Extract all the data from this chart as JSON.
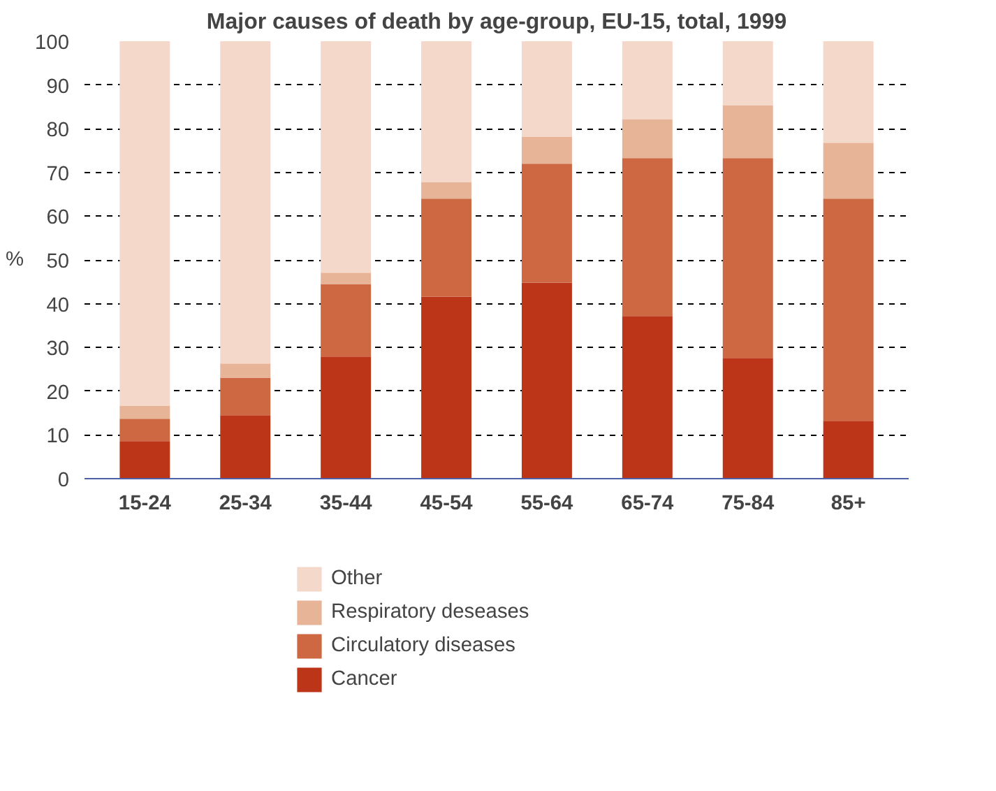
{
  "chart_data": {
    "type": "bar",
    "title": "Major causes of death by age-group, EU-15, total, 1999",
    "ylabel": "%",
    "categories": [
      "15-24",
      "25-34",
      "35-44",
      "45-54",
      "55-64",
      "65-74",
      "75-84",
      "85+"
    ],
    "stacked": true,
    "series": [
      {
        "name": "Cancer",
        "color": "#bc3518",
        "values": [
          8.6,
          14.5,
          27.9,
          41.6,
          44.8,
          37.2,
          27.6,
          13.2
        ]
      },
      {
        "name": "Circulatory diseases",
        "color": "#cd6842",
        "values": [
          5.1,
          8.6,
          16.6,
          22.4,
          27.2,
          36.1,
          45.7,
          50.8
        ]
      },
      {
        "name": "Respiratory deseases",
        "color": "#e8b498",
        "values": [
          2.9,
          3.2,
          2.6,
          3.8,
          6.1,
          8.9,
          12.1,
          12.8
        ]
      },
      {
        "name": "Other",
        "color": "#f4d8ca",
        "values": [
          83.4,
          73.7,
          52.9,
          32.2,
          21.9,
          17.8,
          14.6,
          23.2
        ]
      }
    ],
    "ylim": [
      0,
      100
    ],
    "yticks": [
      0,
      10,
      20,
      30,
      40,
      50,
      60,
      70,
      80,
      90,
      100
    ],
    "grid": "y",
    "legend": "bottom"
  }
}
